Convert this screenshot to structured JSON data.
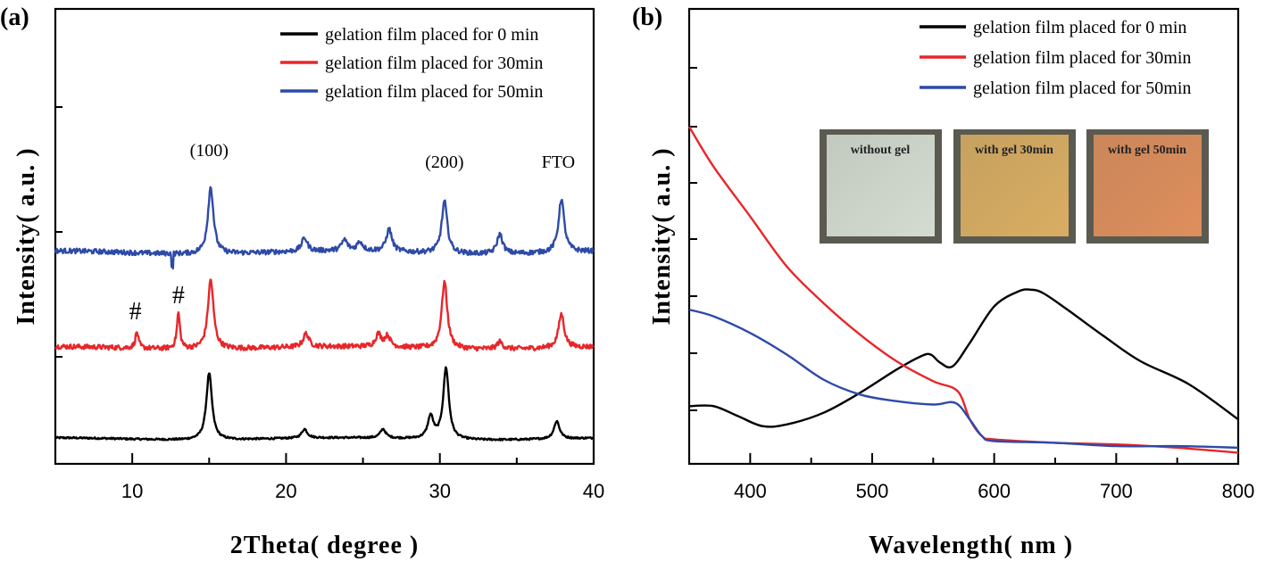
{
  "chart_data": [
    {
      "type": "line",
      "panel": "(a)",
      "xlabel": "2Theta( degree )",
      "ylabel": "Intensity( a.u. )",
      "xlim": [
        5,
        40
      ],
      "xticks": [
        10,
        20,
        30,
        40
      ],
      "yticks_labeled": false,
      "legend_position": "top-right",
      "series": [
        {
          "name": "gelation film placed for 0 min",
          "color": "#000000",
          "offset": 0,
          "peaks": [
            [
              15.0,
              75
            ],
            [
              21.2,
              10
            ],
            [
              26.3,
              10
            ],
            [
              29.4,
              25
            ],
            [
              30.4,
              80
            ],
            [
              37.6,
              20
            ]
          ],
          "baseline": 8
        },
        {
          "name": "gelation film placed for 30min",
          "color": "#e8262a",
          "offset": 100,
          "peaks": [
            [
              10.3,
              18
            ],
            [
              13.0,
              40
            ],
            [
              15.1,
              78
            ],
            [
              21.3,
              15
            ],
            [
              26.0,
              14
            ],
            [
              26.6,
              12
            ],
            [
              30.3,
              75
            ],
            [
              33.9,
              8
            ],
            [
              37.9,
              38
            ]
          ],
          "baseline": 10
        },
        {
          "name": "gelation film placed for 50min",
          "color": "#2e4aa8",
          "offset": 205,
          "peaks": [
            [
              15.1,
              75
            ],
            [
              21.2,
              15
            ],
            [
              23.8,
              12
            ],
            [
              24.8,
              10
            ],
            [
              26.7,
              25
            ],
            [
              30.3,
              58
            ],
            [
              33.9,
              22
            ],
            [
              37.9,
              60
            ]
          ],
          "baseline": 12
        }
      ],
      "annotations": [
        {
          "text": "(100)",
          "x": 15.0
        },
        {
          "text": "(200)",
          "x": 30.3
        },
        {
          "text": "FTO",
          "x": 37.7
        },
        {
          "text": "#",
          "x": 10.2
        },
        {
          "text": "#",
          "x": 13.0
        }
      ]
    },
    {
      "type": "line",
      "panel": "(b)",
      "xlabel": "Wavelength( nm )",
      "ylabel": "Intensity( a.u. )",
      "xlim": [
        350,
        800
      ],
      "xticks": [
        400,
        500,
        600,
        700,
        800
      ],
      "ylim": [
        0,
        100
      ],
      "yticks_labeled": false,
      "legend_position": "top-right",
      "series": [
        {
          "name": "gelation film placed for 0 min",
          "color": "#000000",
          "x": [
            350,
            370,
            390,
            410,
            430,
            460,
            490,
            520,
            540,
            548,
            556,
            566,
            580,
            600,
            620,
            630,
            640,
            660,
            690,
            720,
            760,
            800
          ],
          "y": [
            16,
            16,
            13,
            10,
            10.5,
            14,
            20,
            27,
            31,
            31.5,
            29,
            28,
            35,
            46,
            50.5,
            51,
            50,
            45,
            37,
            29.5,
            22.5,
            12
          ]
        },
        {
          "name": "gelation film placed for 30min",
          "color": "#e8262a",
          "x": [
            350,
            370,
            400,
            430,
            460,
            490,
            520,
            550,
            570,
            580,
            590,
            600,
            650,
            700,
            750,
            800
          ],
          "y": [
            100,
            88,
            73,
            58,
            47,
            37.5,
            29.5,
            23.5,
            20.5,
            12,
            7,
            6,
            5,
            4.5,
            3.5,
            2
          ]
        },
        {
          "name": "gelation film placed for 50min",
          "color": "#2e4aa8",
          "x": [
            350,
            370,
            400,
            430,
            460,
            490,
            520,
            550,
            568,
            580,
            590,
            600,
            650,
            700,
            750,
            800
          ],
          "y": [
            45,
            43,
            38,
            31.5,
            24,
            19.5,
            17.5,
            16.5,
            17,
            12,
            7,
            5.5,
            5,
            4,
            4,
            3.5
          ]
        }
      ],
      "inset_photos": [
        {
          "label": "without gel",
          "color": "#d4dcd2"
        },
        {
          "label": "with gel 30min",
          "color": "#d9ad62"
        },
        {
          "label": "with gel 50min",
          "color": "#de8e5c"
        }
      ]
    }
  ]
}
